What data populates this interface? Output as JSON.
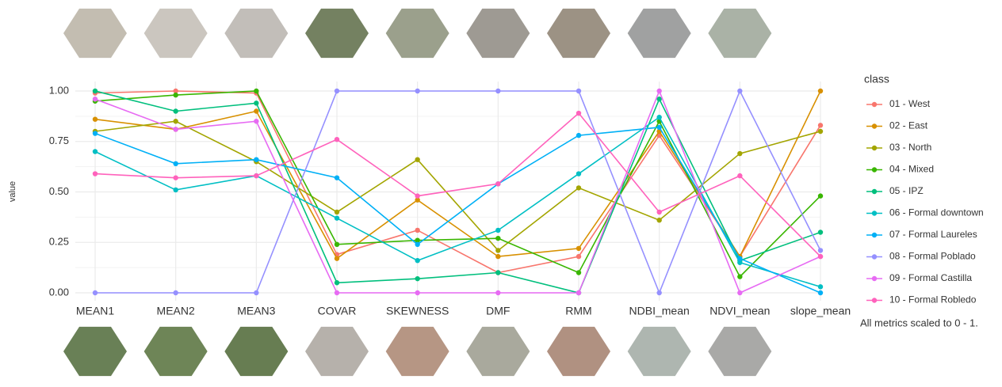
{
  "chart_data": {
    "type": "parallel",
    "y_label": "value",
    "categories": [
      "MEAN1",
      "MEAN2",
      "MEAN3",
      "COVAR",
      "SKEWNESS",
      "DMF",
      "RMM",
      "NDBI_mean",
      "NDVI_mean",
      "slope_mean"
    ],
    "ylim": [
      0,
      1
    ],
    "yticks": [
      {
        "value": 0,
        "label": "0.00"
      },
      {
        "value": 0.25,
        "label": "0.25"
      },
      {
        "value": 0.5,
        "label": "0.50"
      },
      {
        "value": 0.75,
        "label": "0.75"
      },
      {
        "value": 1,
        "label": "1.00"
      }
    ],
    "grid": true,
    "legend_title": "class",
    "legend_position": "right",
    "note": "All metrics scaled to 0 - 1.",
    "series": [
      {
        "name": "01 - West",
        "color": "#F8766D",
        "values": [
          0.99,
          1.0,
          0.99,
          0.19,
          0.31,
          0.1,
          0.18,
          0.78,
          0.18,
          0.83
        ]
      },
      {
        "name": "02 - East",
        "color": "#D89000",
        "values": [
          0.86,
          0.81,
          0.9,
          0.17,
          0.46,
          0.18,
          0.22,
          0.8,
          0.18,
          1.0
        ]
      },
      {
        "name": "03 - North",
        "color": "#A3A500",
        "values": [
          0.8,
          0.85,
          0.65,
          0.4,
          0.66,
          0.21,
          0.52,
          0.36,
          0.69,
          0.8
        ]
      },
      {
        "name": "04 - Mixed",
        "color": "#39B600",
        "values": [
          0.95,
          0.98,
          1.0,
          0.24,
          0.26,
          0.27,
          0.1,
          0.85,
          0.08,
          0.48
        ]
      },
      {
        "name": "05 - IPZ",
        "color": "#00BF7D",
        "values": [
          1.0,
          0.9,
          0.94,
          0.05,
          0.07,
          0.1,
          0.0,
          0.96,
          0.16,
          0.3
        ]
      },
      {
        "name": "06 - Formal downtown",
        "color": "#00BFC4",
        "values": [
          0.7,
          0.51,
          0.58,
          0.37,
          0.16,
          0.31,
          0.59,
          0.87,
          0.15,
          0.03
        ]
      },
      {
        "name": "07 - Formal Laureles",
        "color": "#00B0F6",
        "values": [
          0.79,
          0.64,
          0.66,
          0.57,
          0.24,
          0.54,
          0.78,
          0.82,
          0.17,
          0.0
        ]
      },
      {
        "name": "08 - Formal Poblado",
        "color": "#9590FF",
        "values": [
          0.0,
          0.0,
          0.0,
          1.0,
          1.0,
          1.0,
          1.0,
          0.0,
          1.0,
          0.21
        ]
      },
      {
        "name": "09 - Formal Castilla",
        "color": "#E76BF3",
        "values": [
          0.96,
          0.81,
          0.85,
          0.0,
          0.0,
          0.0,
          0.0,
          1.0,
          0.0,
          0.18
        ]
      },
      {
        "name": "10 - Formal Robledo",
        "color": "#FF62BC",
        "values": [
          0.59,
          0.57,
          0.58,
          0.76,
          0.48,
          0.54,
          0.89,
          0.4,
          0.58,
          0.18
        ]
      }
    ]
  }
}
